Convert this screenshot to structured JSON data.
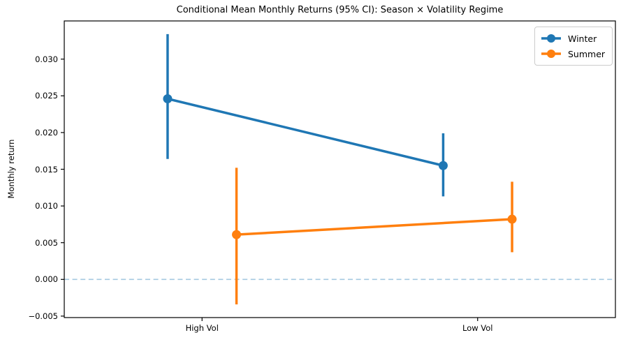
{
  "chart_data": {
    "type": "line",
    "title": "Conditional Mean Monthly Returns (95% CI): Season × Volatility Regime",
    "ylabel": "Monthly return",
    "xlabel": "",
    "categories": [
      "High Vol",
      "Low Vol"
    ],
    "series": [
      {
        "name": "Winter",
        "color": "#1f77b4",
        "x_offset": -0.125,
        "means": [
          0.0246,
          0.0155
        ],
        "ci_low": [
          0.0164,
          0.0113
        ],
        "ci_high": [
          0.0334,
          0.0199
        ]
      },
      {
        "name": "Summer",
        "color": "#ff7f0e",
        "x_offset": 0.125,
        "means": [
          0.0061,
          0.0082
        ],
        "ci_low": [
          -0.0034,
          0.0037
        ],
        "ci_high": [
          0.0152,
          0.0133
        ]
      }
    ],
    "error_bars": "95% confidence interval",
    "y_ticks": [
      {
        "value": 0.03,
        "label": "0.030"
      },
      {
        "value": 0.025,
        "label": "0.025"
      },
      {
        "value": 0.02,
        "label": "0.020"
      },
      {
        "value": 0.015,
        "label": "0.015"
      },
      {
        "value": 0.01,
        "label": "0.010"
      },
      {
        "value": 0.005,
        "label": "0.005"
      },
      {
        "value": 0.0,
        "label": "0.000"
      },
      {
        "value": -0.005,
        "label": "−0.005"
      }
    ],
    "ylim": [
      -0.0052,
      0.0352
    ],
    "xlim": [
      -0.5,
      1.5
    ],
    "zero_line": {
      "value": 0.0,
      "color": "#a5c9e1",
      "style": "dashed"
    },
    "grid": false,
    "legend": {
      "position": "upper right"
    },
    "colors": {
      "spine": "#000000",
      "background": "#ffffff"
    }
  }
}
